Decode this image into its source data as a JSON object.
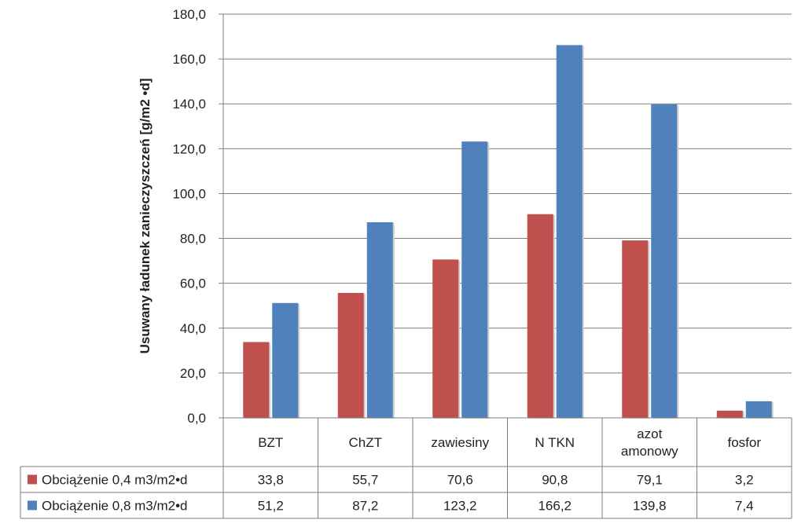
{
  "chart_data": {
    "type": "bar",
    "ylabel": "Usuwany ładunek zanieczyszczeń [g/m2 •d]",
    "xlabel": "",
    "ylim": [
      0,
      180
    ],
    "yticks": [
      "0,0",
      "20,0",
      "40,0",
      "60,0",
      "80,0",
      "100,0",
      "120,0",
      "140,0",
      "160,0",
      "180,0"
    ],
    "categories": [
      [
        "BZT"
      ],
      [
        "ChZT"
      ],
      [
        "zawiesiny"
      ],
      [
        "N TKN"
      ],
      [
        "azot",
        "amonowy"
      ],
      [
        "fosfor"
      ]
    ],
    "series": [
      {
        "name": "Obciążenie 0,4 m3/m2•d",
        "color": "#c0504d",
        "values": [
          33.8,
          55.7,
          70.6,
          90.8,
          79.1,
          3.2
        ],
        "labels": [
          "33,8",
          "55,7",
          "70,6",
          "90,8",
          "79,1",
          "3,2"
        ]
      },
      {
        "name": "Obciążenie 0,8 m3/m2•d",
        "color": "#4f81bd",
        "values": [
          51.2,
          87.2,
          123.2,
          166.2,
          139.8,
          7.4
        ],
        "labels": [
          "51,2",
          "87,2",
          "123,2",
          "166,2",
          "139,8",
          "7,4"
        ]
      }
    ],
    "grid": true,
    "legend": "data-table"
  }
}
